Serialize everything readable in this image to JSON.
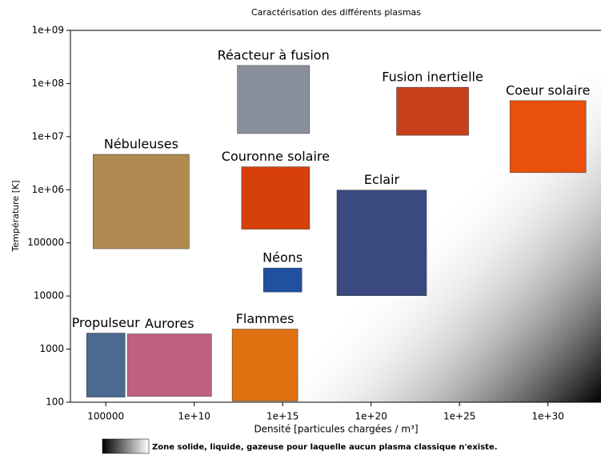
{
  "chart_data": {
    "type": "annotated-scatter",
    "title": "Caractérisation des différents plasmas",
    "x_label": "Densité [particules chargées / m³]",
    "y_label": "Température [K]",
    "log_x": true,
    "log_y": true,
    "xlim": [
      1000,
      1e+33
    ],
    "ylim": [
      100,
      1000000000
    ],
    "xticks": [
      100000,
      {
        "value": 10000000000,
        "label": "1e+10"
      },
      {
        "value": 1000000000000000.0,
        "label": "1e+15"
      },
      {
        "value": 1e+20,
        "label": "1e+20"
      },
      {
        "value": 1e+25,
        "label": "1e+25"
      },
      {
        "value": 1e+30,
        "label": "1e+30"
      }
    ],
    "yticks": [
      100,
      1000,
      10000,
      100000,
      {
        "value": 1000000,
        "label": "1e+06"
      },
      {
        "value": 10000000,
        "label": "1e+07"
      },
      {
        "value": 100000000,
        "label": "1e+08"
      },
      {
        "value": 1000000000,
        "label": "1e+09"
      }
    ],
    "points": [
      {
        "name": "Réacteur à fusion",
        "x": 300000000000000.0,
        "y": 50000000,
        "color": "#8a8f9c"
      },
      {
        "name": "Fusion inertielle",
        "x": 3e+23,
        "y": 30000000,
        "color": "#c8401a"
      },
      {
        "name": "Coeur solaire",
        "x": 1e+30,
        "y": 10000000,
        "color": "#e8500c"
      },
      {
        "name": "Nébuleuses",
        "x": 10000000,
        "y": 600000,
        "color": "#b08a50"
      },
      {
        "name": "Couronne solaire",
        "x": 400000000000000.0,
        "y": 700000,
        "color": "#d8400a"
      },
      {
        "name": "Eclair",
        "x": 4e+20,
        "y": 100000,
        "color": "#3a4a80"
      },
      {
        "name": "Néons",
        "x": 1000000000000000.0,
        "y": 20000,
        "color": "#2050a0"
      },
      {
        "name": "Propulseur",
        "x": 100000,
        "y": 500,
        "color": "#4a6a90"
      },
      {
        "name": "Aurores",
        "x": 400000000,
        "y": 500,
        "color": "#c06080"
      },
      {
        "name": "Flammes",
        "x": 100000000000000,
        "y": 500,
        "color": "#e07010"
      }
    ],
    "zone_label": "Zone solide, liquide, gazeuse pour laquelle aucun plasma classique n'existe."
  }
}
